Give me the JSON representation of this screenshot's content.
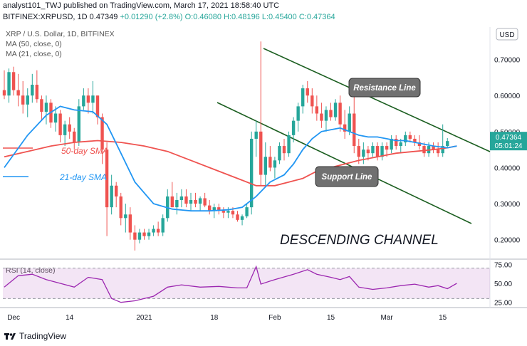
{
  "header": {
    "line1": "analyst101_TWJ published on TradingView.com, March 17, 2021 18:58:40 UTC",
    "symbol": "BITFINEX:XRPUSD, 1D",
    "last": "0.47349",
    "change": "+0.01290 (+2.8%)",
    "ohlc": "O:0.46080 H:0.48196 L:0.45400 C:0.47364"
  },
  "legend": {
    "pair": "XRP / U.S. Dollar, 1D, BITFINEX",
    "ma50": "MA (50, close, 0)",
    "ma21": "MA (21, close, 0)",
    "rsi": "RSI (14, close)"
  },
  "currency_badge": "USD",
  "price_label": "0.47364",
  "countdown_label": "05:01:24",
  "footer_logo": "TradingView",
  "colors": {
    "up": "#26a69a",
    "down": "#ef5350",
    "ma21": "#2196f3",
    "ma50": "#ef5350",
    "rsi": "#9c27b0",
    "channel": "#1b5e20",
    "callout": "#707070"
  },
  "chart_data": [
    {
      "type": "candlestick",
      "title": "XRP / U.S. Dollar, 1D, BITFINEX",
      "x_tick_labels": [
        "Dec",
        "14",
        "2021",
        "18",
        "Feb",
        "15",
        "Mar",
        "15"
      ],
      "y_ticks": [
        0.2,
        0.3,
        0.4,
        0.5,
        0.6,
        0.7
      ],
      "y_tick_labels": [
        "0.20000",
        "0.30000",
        "0.40000",
        "0.50000",
        "0.60000",
        "0.70000"
      ],
      "ylim": [
        0.15,
        0.79
      ],
      "grid": false,
      "current_price": 0.47364,
      "candles": [
        [
          0.615,
          0.67,
          0.59,
          0.6
        ],
        [
          0.6,
          0.675,
          0.58,
          0.665
        ],
        [
          0.665,
          0.68,
          0.6,
          0.615
        ],
        [
          0.615,
          0.66,
          0.57,
          0.6
        ],
        [
          0.6,
          0.64,
          0.55,
          0.575
        ],
        [
          0.575,
          0.62,
          0.54,
          0.6
        ],
        [
          0.6,
          0.66,
          0.58,
          0.63
        ],
        [
          0.63,
          0.67,
          0.58,
          0.59
        ],
        [
          0.59,
          0.6,
          0.53,
          0.555
        ],
        [
          0.555,
          0.6,
          0.52,
          0.58
        ],
        [
          0.58,
          0.59,
          0.51,
          0.525
        ],
        [
          0.525,
          0.57,
          0.5,
          0.55
        ],
        [
          0.55,
          0.56,
          0.47,
          0.49
        ],
        [
          0.49,
          0.53,
          0.46,
          0.52
        ],
        [
          0.52,
          0.54,
          0.48,
          0.5
        ],
        [
          0.5,
          0.51,
          0.45,
          0.47
        ],
        [
          0.47,
          0.59,
          0.46,
          0.57
        ],
        [
          0.57,
          0.62,
          0.56,
          0.6
        ],
        [
          0.6,
          0.62,
          0.55,
          0.58
        ],
        [
          0.58,
          0.64,
          0.55,
          0.6
        ],
        [
          0.6,
          0.6,
          0.52,
          0.54
        ],
        [
          0.54,
          0.55,
          0.41,
          0.45
        ],
        [
          0.45,
          0.47,
          0.21,
          0.29
        ],
        [
          0.29,
          0.38,
          0.27,
          0.35
        ],
        [
          0.35,
          0.36,
          0.29,
          0.32
        ],
        [
          0.32,
          0.33,
          0.24,
          0.26
        ],
        [
          0.26,
          0.3,
          0.22,
          0.27
        ],
        [
          0.27,
          0.29,
          0.2,
          0.22
        ],
        [
          0.22,
          0.24,
          0.17,
          0.2
        ],
        [
          0.2,
          0.23,
          0.19,
          0.22
        ],
        [
          0.22,
          0.23,
          0.2,
          0.21
        ],
        [
          0.21,
          0.23,
          0.2,
          0.22
        ],
        [
          0.22,
          0.24,
          0.21,
          0.23
        ],
        [
          0.23,
          0.25,
          0.21,
          0.22
        ],
        [
          0.22,
          0.27,
          0.21,
          0.26
        ],
        [
          0.26,
          0.34,
          0.25,
          0.32
        ],
        [
          0.32,
          0.36,
          0.29,
          0.29
        ],
        [
          0.29,
          0.33,
          0.27,
          0.31
        ],
        [
          0.31,
          0.34,
          0.29,
          0.32
        ],
        [
          0.32,
          0.34,
          0.29,
          0.3
        ],
        [
          0.3,
          0.33,
          0.28,
          0.31
        ],
        [
          0.31,
          0.33,
          0.29,
          0.3
        ],
        [
          0.3,
          0.32,
          0.28,
          0.315
        ],
        [
          0.315,
          0.33,
          0.29,
          0.295
        ],
        [
          0.295,
          0.31,
          0.27,
          0.28
        ],
        [
          0.28,
          0.3,
          0.26,
          0.29
        ],
        [
          0.29,
          0.3,
          0.27,
          0.28
        ],
        [
          0.28,
          0.29,
          0.26,
          0.275
        ],
        [
          0.275,
          0.29,
          0.26,
          0.28
        ],
        [
          0.28,
          0.29,
          0.26,
          0.27
        ],
        [
          0.27,
          0.28,
          0.25,
          0.255
        ],
        [
          0.255,
          0.27,
          0.24,
          0.265
        ],
        [
          0.265,
          0.3,
          0.26,
          0.29
        ],
        [
          0.29,
          0.5,
          0.27,
          0.48
        ],
        [
          0.48,
          0.53,
          0.43,
          0.5
        ],
        [
          0.5,
          0.75,
          0.35,
          0.38
        ],
        [
          0.38,
          0.47,
          0.35,
          0.43
        ],
        [
          0.43,
          0.46,
          0.39,
          0.4
        ],
        [
          0.4,
          0.43,
          0.37,
          0.42
        ],
        [
          0.42,
          0.47,
          0.41,
          0.46
        ],
        [
          0.46,
          0.48,
          0.42,
          0.44
        ],
        [
          0.44,
          0.5,
          0.43,
          0.49
        ],
        [
          0.49,
          0.54,
          0.47,
          0.53
        ],
        [
          0.53,
          0.58,
          0.5,
          0.57
        ],
        [
          0.57,
          0.63,
          0.55,
          0.62
        ],
        [
          0.62,
          0.64,
          0.58,
          0.6
        ],
        [
          0.6,
          0.62,
          0.55,
          0.57
        ],
        [
          0.57,
          0.6,
          0.53,
          0.55
        ],
        [
          0.55,
          0.58,
          0.51,
          0.53
        ],
        [
          0.53,
          0.57,
          0.5,
          0.56
        ],
        [
          0.56,
          0.58,
          0.53,
          0.54
        ],
        [
          0.54,
          0.59,
          0.53,
          0.58
        ],
        [
          0.58,
          0.6,
          0.5,
          0.52
        ],
        [
          0.52,
          0.56,
          0.48,
          0.5
        ],
        [
          0.5,
          0.57,
          0.49,
          0.55
        ],
        [
          0.55,
          0.6,
          0.44,
          0.46
        ],
        [
          0.46,
          0.48,
          0.41,
          0.43
        ],
        [
          0.43,
          0.47,
          0.41,
          0.45
        ],
        [
          0.45,
          0.46,
          0.42,
          0.44
        ],
        [
          0.44,
          0.47,
          0.43,
          0.46
        ],
        [
          0.46,
          0.47,
          0.42,
          0.43
        ],
        [
          0.43,
          0.47,
          0.42,
          0.46
        ],
        [
          0.46,
          0.47,
          0.43,
          0.45
        ],
        [
          0.45,
          0.49,
          0.44,
          0.48
        ],
        [
          0.48,
          0.49,
          0.45,
          0.46
        ],
        [
          0.46,
          0.48,
          0.44,
          0.47
        ],
        [
          0.47,
          0.5,
          0.46,
          0.49
        ],
        [
          0.49,
          0.5,
          0.47,
          0.48
        ],
        [
          0.48,
          0.49,
          0.46,
          0.47
        ],
        [
          0.47,
          0.49,
          0.45,
          0.46
        ],
        [
          0.46,
          0.47,
          0.43,
          0.44
        ],
        [
          0.44,
          0.47,
          0.43,
          0.46
        ],
        [
          0.46,
          0.47,
          0.44,
          0.45
        ],
        [
          0.45,
          0.47,
          0.43,
          0.44
        ],
        [
          0.44,
          0.52,
          0.43,
          0.46
        ],
        [
          0.46,
          0.48196,
          0.454,
          0.47364
        ]
      ],
      "ma21": [
        [
          0,
          0.4
        ],
        [
          5,
          0.49
        ],
        [
          9,
          0.545
        ],
        [
          12,
          0.57
        ],
        [
          15,
          0.56
        ],
        [
          19,
          0.555
        ],
        [
          22,
          0.52
        ],
        [
          25,
          0.44
        ],
        [
          28,
          0.36
        ],
        [
          32,
          0.3
        ],
        [
          36,
          0.285
        ],
        [
          40,
          0.28
        ],
        [
          44,
          0.28
        ],
        [
          48,
          0.283
        ],
        [
          51,
          0.29
        ],
        [
          54,
          0.32
        ],
        [
          57,
          0.36
        ],
        [
          60,
          0.38
        ],
        [
          62,
          0.41
        ],
        [
          64,
          0.45
        ],
        [
          66,
          0.48
        ],
        [
          68,
          0.5
        ],
        [
          70,
          0.505
        ],
        [
          72,
          0.51
        ],
        [
          74,
          0.5
        ],
        [
          76,
          0.49
        ],
        [
          78,
          0.485
        ],
        [
          80,
          0.485
        ],
        [
          82,
          0.48
        ],
        [
          84,
          0.475
        ],
        [
          86,
          0.475
        ],
        [
          88,
          0.47
        ],
        [
          90,
          0.465
        ],
        [
          92,
          0.46
        ],
        [
          95,
          0.455
        ],
        [
          97,
          0.46
        ]
      ],
      "ma50": [
        [
          0,
          0.43
        ],
        [
          5,
          0.445
        ],
        [
          10,
          0.46
        ],
        [
          15,
          0.47
        ],
        [
          20,
          0.475
        ],
        [
          25,
          0.47
        ],
        [
          30,
          0.46
        ],
        [
          35,
          0.445
        ],
        [
          40,
          0.42
        ],
        [
          45,
          0.395
        ],
        [
          50,
          0.37
        ],
        [
          54,
          0.35
        ],
        [
          58,
          0.35
        ],
        [
          61,
          0.36
        ],
        [
          64,
          0.37
        ],
        [
          67,
          0.39
        ],
        [
          70,
          0.4
        ],
        [
          73,
          0.41
        ],
        [
          76,
          0.42
        ],
        [
          80,
          0.43
        ],
        [
          84,
          0.44
        ],
        [
          88,
          0.445
        ],
        [
          92,
          0.45
        ],
        [
          95,
          0.455
        ],
        [
          97,
          0.46
        ]
      ]
    },
    {
      "type": "line",
      "title": "RSI (14, close)",
      "y_ticks": [
        25,
        50,
        75
      ],
      "y_tick_labels": [
        "25.00",
        "50.00",
        "75.00"
      ],
      "ylim": [
        20,
        80
      ],
      "band": [
        30,
        70
      ],
      "values": [
        [
          0,
          45
        ],
        [
          3,
          60
        ],
        [
          6,
          62
        ],
        [
          9,
          55
        ],
        [
          12,
          50
        ],
        [
          15,
          45
        ],
        [
          18,
          58
        ],
        [
          21,
          55
        ],
        [
          23,
          30
        ],
        [
          25,
          25
        ],
        [
          28,
          27
        ],
        [
          32,
          33
        ],
        [
          35,
          45
        ],
        [
          38,
          48
        ],
        [
          42,
          45
        ],
        [
          46,
          46
        ],
        [
          50,
          44
        ],
        [
          52,
          44
        ],
        [
          54,
          72
        ],
        [
          55,
          49
        ],
        [
          58,
          55
        ],
        [
          62,
          62
        ],
        [
          65,
          68
        ],
        [
          67,
          62
        ],
        [
          70,
          58
        ],
        [
          72,
          55
        ],
        [
          74,
          59
        ],
        [
          76,
          45
        ],
        [
          79,
          42
        ],
        [
          82,
          44
        ],
        [
          85,
          47
        ],
        [
          88,
          49
        ],
        [
          91,
          45
        ],
        [
          93,
          47
        ],
        [
          95,
          43
        ],
        [
          97,
          50
        ]
      ]
    }
  ],
  "annotations": {
    "resistance": "Resistance Line",
    "support": "Support Line",
    "ma50_label": "50-day SMA",
    "ma21_label": "21-day SMA",
    "channel": "DESCENDING CHANNEL"
  }
}
